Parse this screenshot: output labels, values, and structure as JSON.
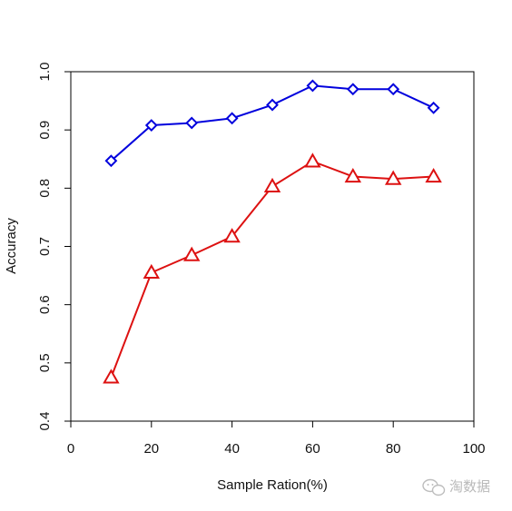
{
  "chart_data": {
    "type": "line",
    "xlabel": "Sample Ration(%)",
    "ylabel": "Accuracy",
    "xlim": [
      0,
      100
    ],
    "ylim": [
      0.4,
      1.0
    ],
    "xticks": [
      0,
      20,
      40,
      60,
      80,
      100
    ],
    "yticks": [
      0.4,
      0.5,
      0.6,
      0.7,
      0.8,
      0.9,
      1.0
    ],
    "x": [
      10,
      20,
      30,
      40,
      50,
      60,
      70,
      80,
      90
    ],
    "grid": false,
    "series": [
      {
        "marker": "diamond",
        "color": "#0000dd",
        "values": [
          0.847,
          0.908,
          0.912,
          0.92,
          0.943,
          0.976,
          0.97,
          0.97,
          0.938
        ]
      },
      {
        "marker": "triangle",
        "color": "#dd1111",
        "values": [
          0.475,
          0.655,
          0.685,
          0.717,
          0.803,
          0.846,
          0.82,
          0.816,
          0.82
        ]
      }
    ]
  },
  "watermark": {
    "text": "淘数据",
    "icon": "wechat-icon"
  }
}
